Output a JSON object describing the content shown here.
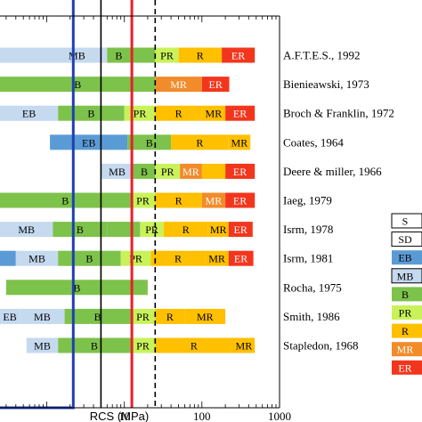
{
  "chart_data": {
    "type": "bar",
    "xlabel": "RCS (MPa)",
    "xscale": "log",
    "xlim": [
      0.25,
      1000
    ],
    "tick_labels": [
      "10",
      "100",
      "1000"
    ],
    "tick_values": [
      10,
      100,
      1000
    ],
    "vertical_lines": [
      {
        "x": 2.2,
        "color": "#1f3fb4",
        "style": "box-edge"
      },
      {
        "x": 5,
        "color": "#000000",
        "style": "solid"
      },
      {
        "x": 12.5,
        "color": "#e8202a",
        "style": "solid"
      },
      {
        "x": 25,
        "color": "#000000",
        "style": "dashed"
      }
    ],
    "rows": [
      {
        "source": "A.F.T.E.S., 1992",
        "segments": [
          {
            "label": "",
            "cls": "MB",
            "from": 0.25,
            "to": 1.0
          },
          {
            "label": "MB",
            "cls": "MB",
            "from": 1.0,
            "to": 6
          },
          {
            "label": "B",
            "cls": "B",
            "from": 6,
            "to": 12
          },
          {
            "label": "",
            "cls": "B",
            "from": 12,
            "to": 25
          },
          {
            "label": "PR",
            "cls": "PR",
            "from": 25,
            "to": 50
          },
          {
            "label": "R",
            "cls": "R",
            "from": 50,
            "to": 180
          },
          {
            "label": "ER",
            "cls": "ER",
            "from": 180,
            "to": 480
          }
        ]
      },
      {
        "source": "Bienieawski, 1973",
        "segments": [
          {
            "label": "B",
            "cls": "B",
            "from": 0.25,
            "to": 25
          },
          {
            "label": "MR",
            "cls": "MR",
            "from": 25,
            "to": 100
          },
          {
            "label": "ER",
            "cls": "ER",
            "from": 100,
            "to": 225
          }
        ]
      },
      {
        "source": "Broch & Franklin, 1972",
        "segments": [
          {
            "label": "EB",
            "cls": "MB",
            "from": 0.25,
            "to": 1.4
          },
          {
            "label": "B",
            "cls": "B",
            "from": 1.4,
            "to": 10
          },
          {
            "label": "PR",
            "cls": "PR",
            "from": 10,
            "to": 25
          },
          {
            "label": "R",
            "cls": "R",
            "from": 25,
            "to": 100
          },
          {
            "label": "MR",
            "cls": "R",
            "from": 100,
            "to": 200
          },
          {
            "label": "ER",
            "cls": "ER",
            "from": 200,
            "to": 480
          }
        ]
      },
      {
        "source": "Coates, 1964",
        "segments": [
          {
            "label": "EB",
            "cls": "EB",
            "from": 1.1,
            "to": 11
          },
          {
            "label": "B",
            "cls": "B",
            "from": 11,
            "to": 40
          },
          {
            "label": "R",
            "cls": "R",
            "from": 40,
            "to": 220
          },
          {
            "label": "MR",
            "cls": "R",
            "from": 220,
            "to": 420
          }
        ]
      },
      {
        "source": "Deere & miller, 1966",
        "segments": [
          {
            "label": "MB",
            "cls": "MB",
            "from": 5,
            "to": 13
          },
          {
            "label": "B",
            "cls": "B",
            "from": 13,
            "to": 25
          },
          {
            "label": "PR",
            "cls": "PR",
            "from": 25,
            "to": 52
          },
          {
            "label": "MR",
            "cls": "MR",
            "from": 52,
            "to": 100
          },
          {
            "label": "",
            "cls": "R",
            "from": 100,
            "to": 200
          },
          {
            "label": "ER",
            "cls": "ER",
            "from": 200,
            "to": 480
          }
        ]
      },
      {
        "source": "Iaeg, 1979",
        "segments": [
          {
            "label": "B",
            "cls": "B",
            "from": 0.25,
            "to": 12
          },
          {
            "label": "PR",
            "cls": "PR",
            "from": 12,
            "to": 25
          },
          {
            "label": "R",
            "cls": "R",
            "from": 25,
            "to": 100
          },
          {
            "label": "MR",
            "cls": "MR",
            "from": 100,
            "to": 200
          },
          {
            "label": "ER",
            "cls": "ER",
            "from": 200,
            "to": 480
          }
        ]
      },
      {
        "source": "Isrm, 1978",
        "segments": [
          {
            "label": "MB",
            "cls": "MB",
            "from": 0.25,
            "to": 1.2
          },
          {
            "label": "B",
            "cls": "B",
            "from": 1.2,
            "to": 6
          },
          {
            "label": "",
            "cls": "B",
            "from": 6,
            "to": 16
          },
          {
            "label": "PR",
            "cls": "PR",
            "from": 16,
            "to": 32
          },
          {
            "label": "R",
            "cls": "R",
            "from": 32,
            "to": 120
          },
          {
            "label": "MR",
            "cls": "R",
            "from": 120,
            "to": 220
          },
          {
            "label": "ER",
            "cls": "ER",
            "from": 220,
            "to": 450
          }
        ]
      },
      {
        "source": "Isrm, 1981",
        "segments": [
          {
            "label": "",
            "cls": "EB",
            "from": 0.25,
            "to": 0.4
          },
          {
            "label": "MB",
            "cls": "MB",
            "from": 0.4,
            "to": 1.4
          },
          {
            "label": "B",
            "cls": "B",
            "from": 1.4,
            "to": 9
          },
          {
            "label": "PR",
            "cls": "PR",
            "from": 9,
            "to": 22
          },
          {
            "label": "R",
            "cls": "R",
            "from": 22,
            "to": 110
          },
          {
            "label": "MR",
            "cls": "R",
            "from": 110,
            "to": 220
          },
          {
            "label": "ER",
            "cls": "ER",
            "from": 220,
            "to": 460
          }
        ]
      },
      {
        "source": "Rocha, 1975",
        "segments": [
          {
            "label": "B",
            "cls": "B",
            "from": 0.3,
            "to": 20
          }
        ]
      },
      {
        "source": "Smith, 1986",
        "segments": [
          {
            "label": "EB",
            "cls": "MB",
            "from": 0.25,
            "to": 0.45
          },
          {
            "label": "MB",
            "cls": "MB",
            "from": 0.45,
            "to": 1.7
          },
          {
            "label": "B",
            "cls": "B",
            "from": 1.7,
            "to": 12
          },
          {
            "label": "PR",
            "cls": "PR",
            "from": 12,
            "to": 25
          },
          {
            "label": "R",
            "cls": "R",
            "from": 25,
            "to": 60
          },
          {
            "label": "MR",
            "cls": "R",
            "from": 60,
            "to": 200
          }
        ]
      },
      {
        "source": "Stapledon, 1968",
        "segments": [
          {
            "label": "MB",
            "cls": "MB",
            "from": 0.55,
            "to": 1.4
          },
          {
            "label": "B",
            "cls": "B",
            "from": 1.4,
            "to": 12
          },
          {
            "label": "PR",
            "cls": "PR",
            "from": 12,
            "to": 25
          },
          {
            "label": "R",
            "cls": "R",
            "from": 25,
            "to": 250
          },
          {
            "label": "MR",
            "cls": "R",
            "from": 250,
            "to": 480
          }
        ]
      }
    ],
    "legend": {
      "position": "right",
      "items": [
        {
          "label": "S",
          "cls": "S"
        },
        {
          "label": "SD",
          "cls": "SD"
        },
        {
          "label": "EB",
          "cls": "EB"
        },
        {
          "label": "MB",
          "cls": "MB"
        },
        {
          "label": "B",
          "cls": "B"
        },
        {
          "label": "PR",
          "cls": "PR"
        },
        {
          "label": "R",
          "cls": "R"
        },
        {
          "label": "MR",
          "cls": "MR"
        },
        {
          "label": "ER",
          "cls": "ER"
        }
      ]
    },
    "class_colors": {
      "S": "#ffffff",
      "SD": "#ffffff",
      "EB": "#5b9bd5",
      "MB": "#c5d9ef",
      "B": "#7dc24b",
      "PR": "#c9f25a",
      "R": "#ffc000",
      "MR": "#f28b2a",
      "ER": "#f2361d"
    }
  }
}
